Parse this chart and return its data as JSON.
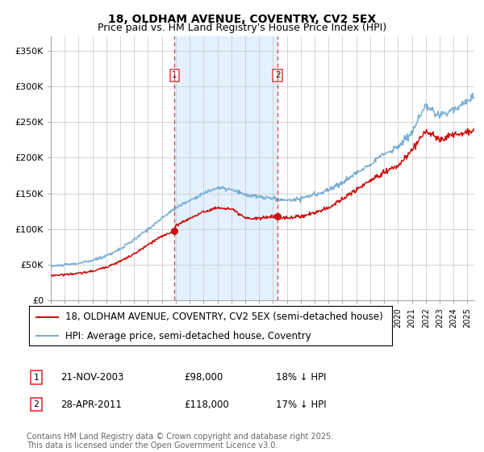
{
  "title": "18, OLDHAM AVENUE, COVENTRY, CV2 5EX",
  "subtitle": "Price paid vs. HM Land Registry's House Price Index (HPI)",
  "ylabel_ticks": [
    "£0",
    "£50K",
    "£100K",
    "£150K",
    "£200K",
    "£250K",
    "£300K",
    "£350K"
  ],
  "ylim": [
    0,
    370000
  ],
  "xlim_start": 1995,
  "xlim_end": 2025.5,
  "marker1_date": 2003.9,
  "marker1_price": 98000,
  "marker1_label": "1",
  "marker2_date": 2011.33,
  "marker2_price": 118000,
  "marker2_label": "2",
  "legend_line1": "18, OLDHAM AVENUE, COVENTRY, CV2 5EX (semi-detached house)",
  "legend_line2": "HPI: Average price, semi-detached house, Coventry",
  "footer": "Contains HM Land Registry data © Crown copyright and database right 2025.\nThis data is licensed under the Open Government Licence v3.0.",
  "hpi_color": "#7bafd4",
  "price_color": "#cc1111",
  "marker_vline_color": "#dd4444",
  "span_color": "#ddeeff",
  "plot_bg": "#ffffff",
  "grid_color": "#cccccc",
  "title_fontsize": 10,
  "subtitle_fontsize": 9,
  "axis_fontsize": 8,
  "legend_fontsize": 8.5,
  "footer_fontsize": 7
}
